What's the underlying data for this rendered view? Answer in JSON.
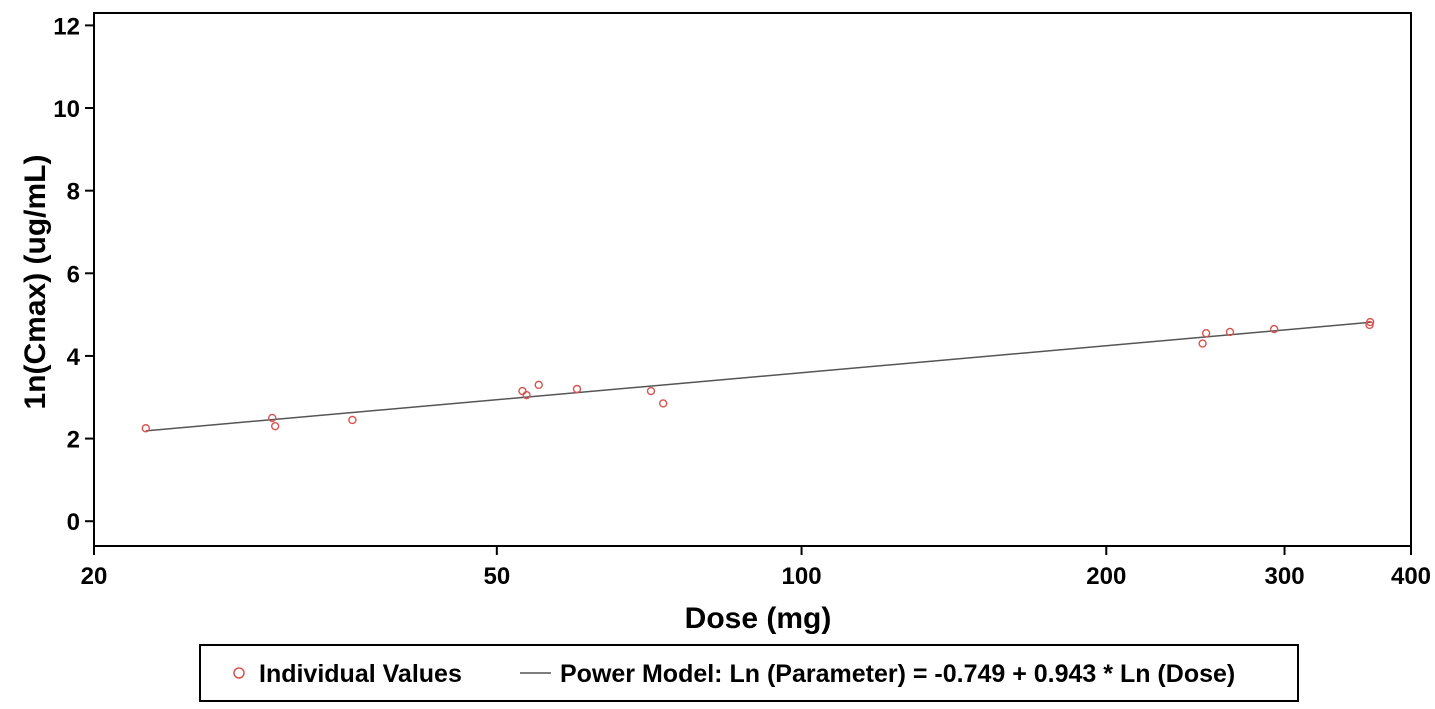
{
  "chart_data": {
    "type": "scatter",
    "title": "",
    "xlabel": "Dose (mg)",
    "ylabel": "1n(Cmax) (ug/mL)",
    "xscale": "log",
    "xlim": [
      20,
      400
    ],
    "ylim": [
      -0.6,
      12.3
    ],
    "xticks": [
      20,
      50,
      100,
      200,
      300,
      400
    ],
    "yticks": [
      0,
      2,
      4,
      6,
      8,
      10,
      12
    ],
    "grid": false,
    "legend_position": "bottom",
    "series": [
      {
        "name": "Individual Values",
        "kind": "scatter",
        "marker": "open-circle",
        "color": "#d9534f",
        "points": [
          [
            22.5,
            2.25
          ],
          [
            30,
            2.5
          ],
          [
            30.2,
            2.3
          ],
          [
            36,
            2.45
          ],
          [
            53,
            3.15
          ],
          [
            53.5,
            3.05
          ],
          [
            55,
            3.3
          ],
          [
            60,
            3.2
          ],
          [
            71,
            3.15
          ],
          [
            73,
            2.85
          ],
          [
            249,
            4.3
          ],
          [
            251,
            4.55
          ],
          [
            265,
            4.58
          ],
          [
            293,
            4.65
          ],
          [
            364,
            4.75
          ],
          [
            364.5,
            4.82
          ]
        ]
      },
      {
        "name": "Power Model: Ln (Parameter) = -0.749 + 0.943 * Ln (Dose)",
        "kind": "line",
        "color": "#555555",
        "intercept": -0.749,
        "slope": 0.943,
        "x_range": [
          22.5,
          365
        ]
      }
    ]
  }
}
